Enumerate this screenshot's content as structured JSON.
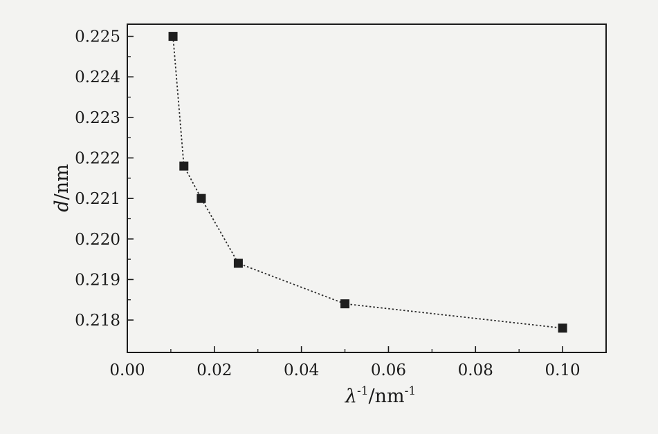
{
  "chart_data": {
    "type": "scatter",
    "title": "",
    "xlabel_main": "λ",
    "xlabel_sup1": "-1",
    "xlabel_unit": "/nm",
    "xlabel_sup2": "-1",
    "ylabel_italic": "d",
    "ylabel_unit": "/nm",
    "xlim": [
      0.0,
      0.11
    ],
    "ylim": [
      0.2172,
      0.2253
    ],
    "x_ticks": [
      0.0,
      0.02,
      0.04,
      0.06,
      0.08,
      0.1
    ],
    "x_tick_labels": [
      "0.00",
      "0.02",
      "0.04",
      "0.06",
      "0.08",
      "0.10"
    ],
    "y_ticks": [
      0.218,
      0.219,
      0.22,
      0.221,
      0.222,
      0.223,
      0.224,
      0.225
    ],
    "y_tick_labels": [
      "0.218",
      "0.219",
      "0.220",
      "0.221",
      "0.222",
      "0.223",
      "0.224",
      "0.225"
    ],
    "series": [
      {
        "x": [
          0.0105,
          0.013,
          0.017,
          0.0255,
          0.05,
          0.1
        ],
        "y": [
          0.225,
          0.2218,
          0.221,
          0.2194,
          0.2184,
          0.2178
        ]
      }
    ],
    "marker": "square",
    "line_style": "dotted",
    "grid": false,
    "legend": "none",
    "colors": {
      "marker": "#1e1e1e",
      "line": "#2a2a2a",
      "axis": "#1a1a1a"
    }
  }
}
